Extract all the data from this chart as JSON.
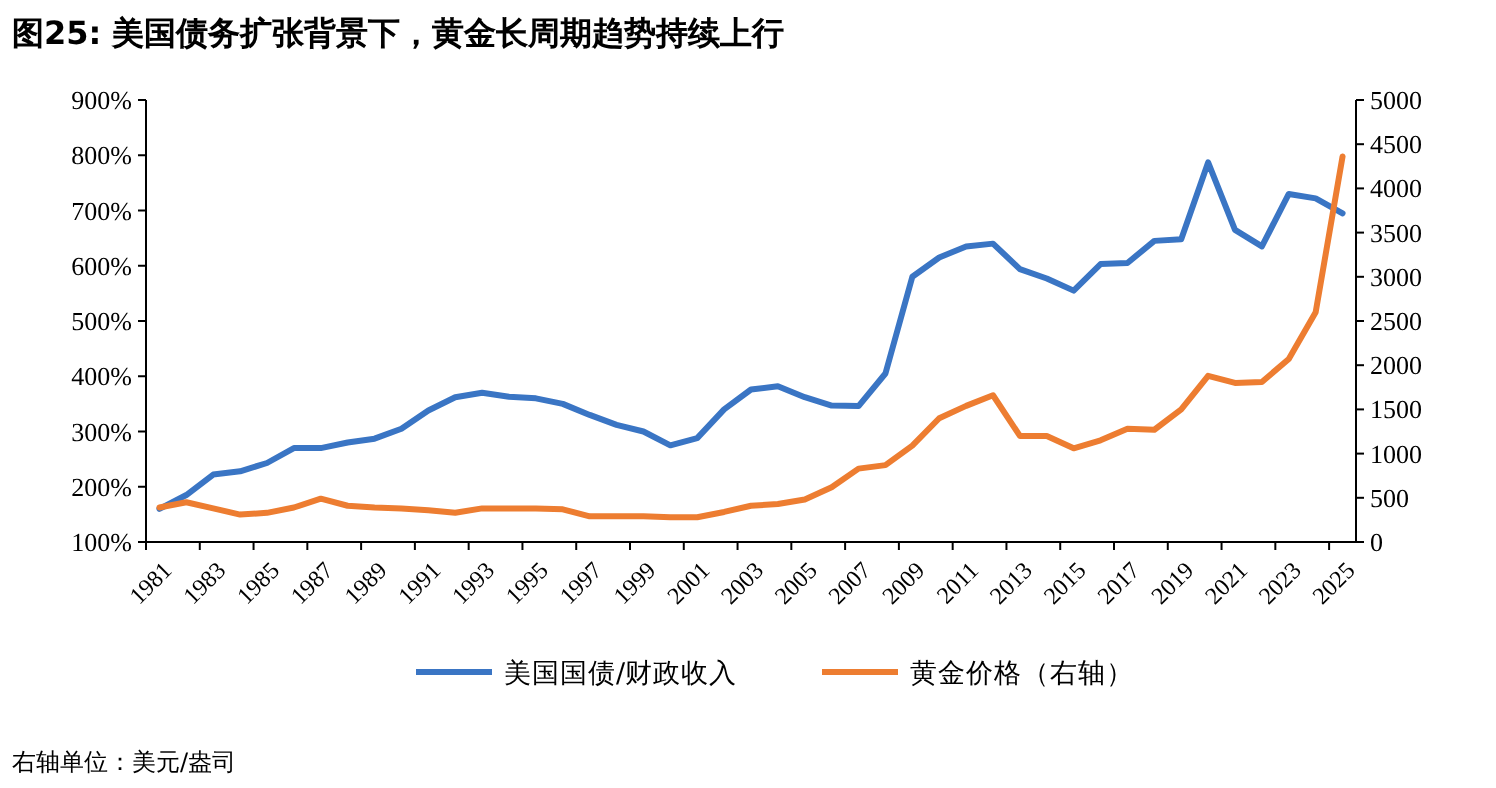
{
  "chart_data": {
    "type": "line",
    "title": "图25: 美国债务扩张背景下，黄金长周期趋势持续上行",
    "categories": [
      "1981",
      null,
      "1983",
      null,
      "1985",
      null,
      "1987",
      null,
      "1989",
      null,
      "1991",
      null,
      "1993",
      null,
      "1995",
      null,
      "1997",
      null,
      "1999",
      null,
      "2001",
      null,
      "2003",
      null,
      "2005",
      null,
      "2007",
      null,
      "2009",
      null,
      "2011",
      null,
      "2013",
      null,
      "2015",
      null,
      "2017",
      null,
      "2019",
      null,
      "2021",
      null,
      "2023",
      null,
      "2025"
    ],
    "series": [
      {
        "name": "美国国债/财政收入",
        "color": "#3a75c4",
        "values": [
          160,
          185,
          222,
          228,
          243,
          270,
          270,
          280,
          287,
          305,
          338,
          362,
          370,
          363,
          360,
          350,
          330,
          312,
          300,
          275,
          288,
          340,
          376,
          382,
          362,
          347,
          346,
          405,
          580,
          615,
          635,
          640,
          594,
          577,
          555,
          603,
          605,
          645,
          648,
          787,
          665,
          635,
          730,
          722,
          695
        ]
      },
      {
        "name": "黄金价格（右轴）",
        "color": "#ed7d31",
        "axis": "y2",
        "values": [
          390,
          450,
          380,
          310,
          330,
          390,
          490,
          410,
          390,
          380,
          360,
          330,
          380,
          380,
          380,
          370,
          290,
          290,
          290,
          280,
          280,
          340,
          410,
          430,
          480,
          620,
          830,
          870,
          1090,
          1400,
          1540,
          1660,
          1200,
          1200,
          1060,
          1150,
          1280,
          1270,
          1500,
          1880,
          1800,
          1810,
          2070,
          2600,
          4360
        ]
      }
    ],
    "ylim": [
      100,
      900
    ],
    "yticks": [
      {
        "value": 100,
        "label": "100%"
      },
      {
        "value": 200,
        "label": "200%"
      },
      {
        "value": 300,
        "label": "300%"
      },
      {
        "value": 400,
        "label": "400%"
      },
      {
        "value": 500,
        "label": "500%"
      },
      {
        "value": 600,
        "label": "600%"
      },
      {
        "value": 700,
        "label": "700%"
      },
      {
        "value": 800,
        "label": "800%"
      },
      {
        "value": 900,
        "label": "900%"
      }
    ],
    "y2lim": [
      0,
      5000
    ],
    "y2ticks": [
      0,
      500,
      1000,
      1500,
      2000,
      2500,
      3000,
      3500,
      4000,
      4500,
      5000
    ],
    "legend": "bottom",
    "grid": false,
    "annotations": [
      "右轴单位：美元/盎司"
    ]
  }
}
